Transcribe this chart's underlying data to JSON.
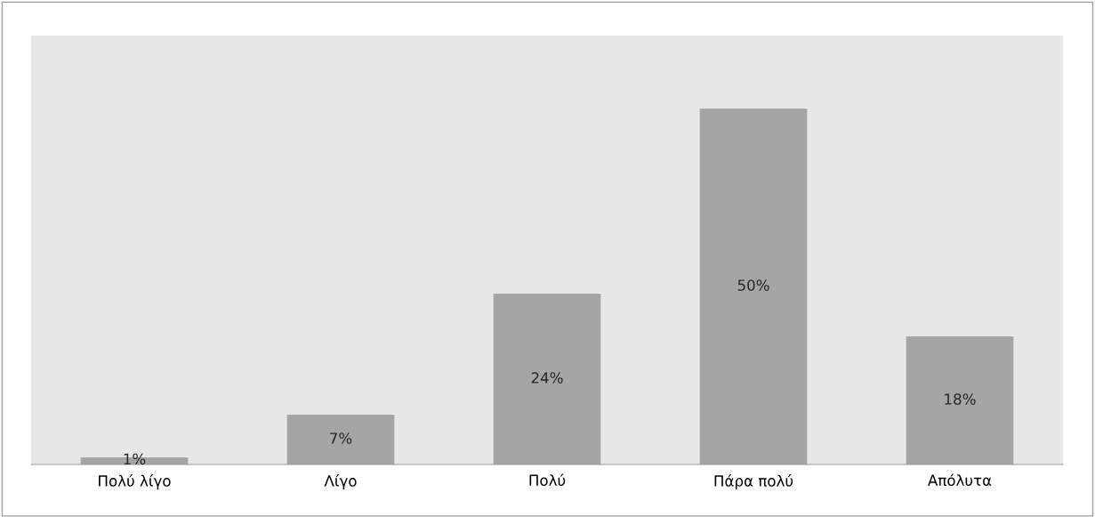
{
  "chart_data": {
    "type": "bar",
    "categories": [
      "Πολύ λίγο",
      "Λίγο",
      "Πολύ",
      "Πάρα πολύ",
      "Απόλυτα"
    ],
    "values": [
      1,
      7,
      24,
      50,
      18
    ],
    "value_labels": [
      "1%",
      "7%",
      "24%",
      "50%",
      "18%"
    ],
    "color": "#a5a5a5",
    "grid": false,
    "legend": false
  }
}
